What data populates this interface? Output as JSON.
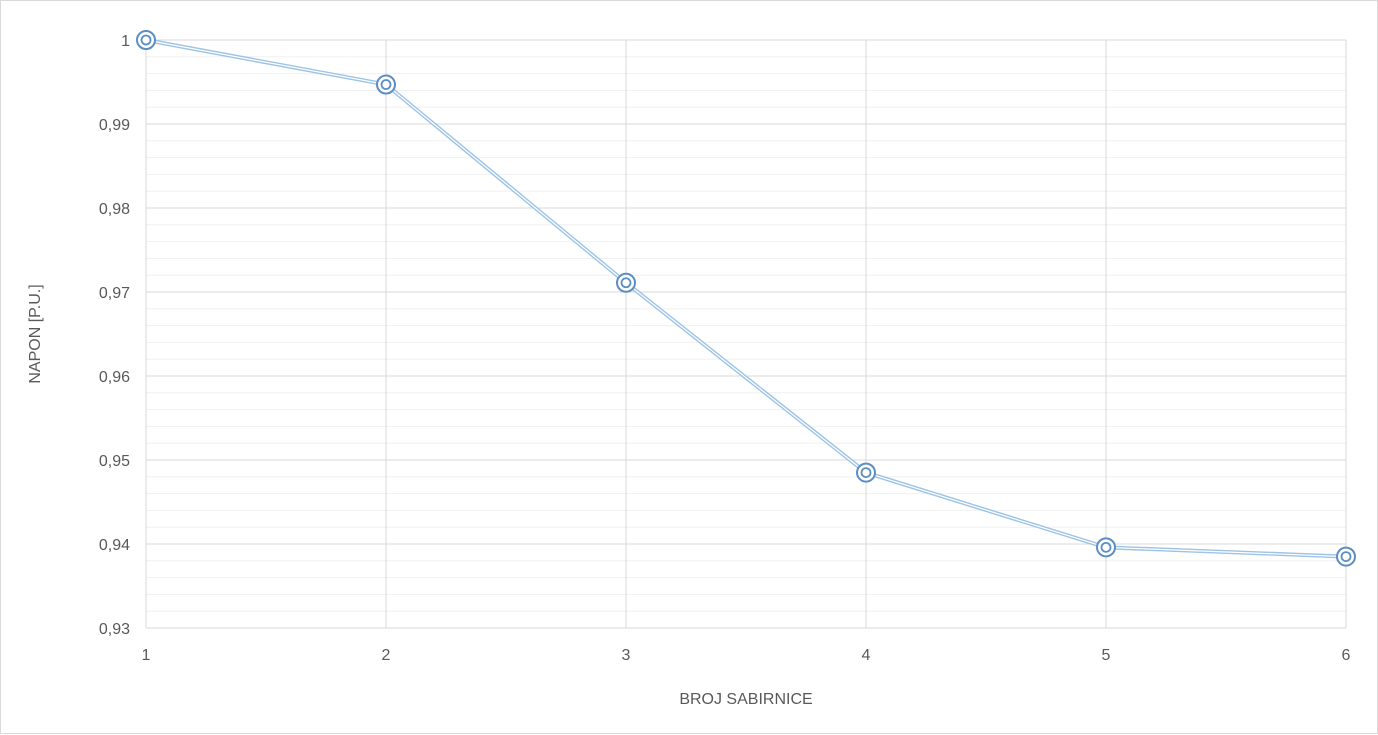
{
  "chart_data": {
    "type": "line",
    "x": [
      1,
      2,
      3,
      4,
      5,
      6
    ],
    "series": [
      {
        "values": [
          1.0,
          0.9947,
          0.9711,
          0.9485,
          0.9396,
          0.9385
        ]
      }
    ],
    "xlabel": "BROJ SABIRNICE",
    "ylabel": "NAPON [P.U.]",
    "xlim": [
      1,
      6
    ],
    "ylim": [
      0.93,
      1.0
    ],
    "y_major_step": 0.01,
    "y_minor_step": 0.002,
    "x_tick_labels": [
      "1",
      "2",
      "3",
      "4",
      "5",
      "6"
    ],
    "y_tick_labels": [
      "0,93",
      "0,94",
      "0,95",
      "0,96",
      "0,97",
      "0,98",
      "0,99",
      "1"
    ],
    "grid": true,
    "line_color": "#9dc3e6",
    "marker_color": "#5b8ec4"
  }
}
